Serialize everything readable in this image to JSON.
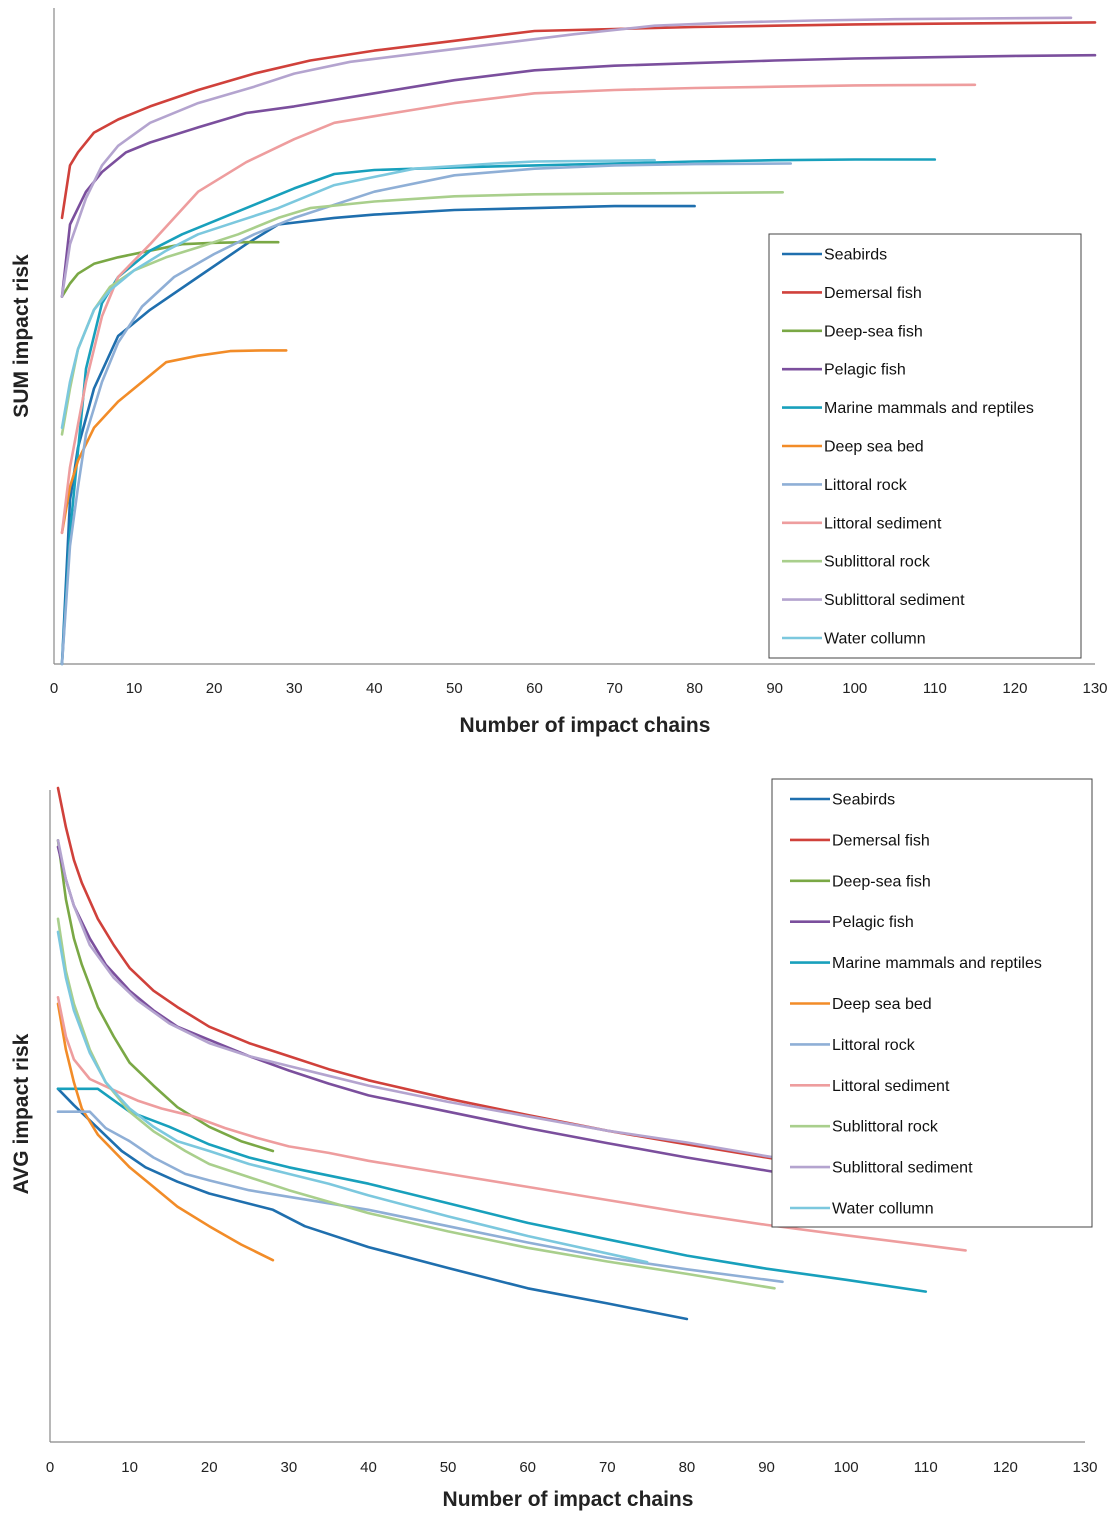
{
  "chart_data": [
    {
      "type": "line",
      "xlabel": "Number of impact chains",
      "ylabel": "SUM impact risk",
      "xlim": [
        0,
        130
      ],
      "xticks": [
        0,
        10,
        20,
        30,
        40,
        50,
        60,
        70,
        80,
        90,
        100,
        110,
        120,
        130
      ],
      "y_scale": "relative (no tick labels shown), 0 = axis bottom, 100 = top",
      "ylim": [
        0,
        100
      ],
      "legend_position": "bottom-right",
      "series": [
        {
          "name": "Seabirds",
          "color": "#1f6fae",
          "x": [
            1,
            2,
            3,
            5,
            8,
            12,
            18,
            24,
            28,
            35,
            40,
            50,
            60,
            70,
            80
          ],
          "y": [
            0,
            25,
            33,
            42,
            50,
            54,
            59,
            64,
            67,
            68,
            68.5,
            69.2,
            69.5,
            69.8,
            69.8
          ]
        },
        {
          "name": "Demersal fish",
          "color": "#d0413b",
          "x": [
            1,
            2,
            3,
            5,
            8,
            12,
            18,
            25,
            32,
            40,
            50,
            60,
            70,
            80,
            90,
            100,
            110,
            120,
            130
          ],
          "y": [
            68,
            76,
            78,
            81,
            83,
            85,
            87.5,
            90,
            92,
            93.5,
            95,
            96.5,
            96.8,
            97.1,
            97.3,
            97.5,
            97.6,
            97.7,
            97.8
          ]
        },
        {
          "name": "Deep-sea fish",
          "color": "#7aa845",
          "x": [
            1,
            2,
            3,
            5,
            8,
            12,
            16,
            20,
            24,
            28
          ],
          "y": [
            56,
            58,
            59.5,
            61,
            62,
            63,
            64,
            64.2,
            64.3,
            64.3
          ]
        },
        {
          "name": "Pelagic fish",
          "color": "#7b4f9d",
          "x": [
            1,
            2,
            4,
            6,
            9,
            12,
            18,
            24,
            30,
            40,
            50,
            60,
            70,
            80,
            90,
            100,
            110,
            120,
            130
          ],
          "y": [
            56,
            67,
            72,
            75,
            78,
            79.5,
            81.8,
            84,
            85,
            87,
            89,
            90.5,
            91.2,
            91.6,
            92,
            92.3,
            92.5,
            92.7,
            92.8
          ]
        },
        {
          "name": "Marine mammals and reptiles",
          "color": "#18a0bc",
          "x": [
            1,
            2,
            4,
            6,
            8,
            12,
            16,
            20,
            25,
            30,
            35,
            40,
            50,
            60,
            70,
            80,
            90,
            100,
            110
          ],
          "y": [
            0,
            20,
            45,
            55,
            59,
            63,
            65.5,
            67.5,
            70,
            72.5,
            74.7,
            75.3,
            75.7,
            76,
            76.3,
            76.6,
            76.8,
            76.9,
            76.9
          ]
        },
        {
          "name": "Deep sea bed",
          "color": "#f28c28",
          "x": [
            1,
            2,
            3,
            5,
            8,
            12,
            14,
            18,
            22,
            26,
            29
          ],
          "y": [
            20,
            27,
            31,
            36,
            40,
            44,
            46,
            47,
            47.7,
            47.8,
            47.8
          ]
        },
        {
          "name": "Littoral rock",
          "color": "#8fafd6",
          "x": [
            1,
            2,
            3,
            4,
            6,
            8,
            11,
            15,
            20,
            25,
            30,
            40,
            50,
            60,
            70,
            80,
            92
          ],
          "y": [
            0,
            18,
            27,
            35,
            43,
            49,
            54.5,
            59,
            62.5,
            65.5,
            68,
            72,
            74.5,
            75.5,
            76,
            76.2,
            76.3
          ]
        },
        {
          "name": "Littoral sediment",
          "color": "#ee9d9e",
          "x": [
            1,
            2,
            4,
            6,
            8,
            12,
            18,
            24,
            30,
            35,
            40,
            50,
            60,
            70,
            80,
            90,
            100,
            115
          ],
          "y": [
            20,
            30,
            43,
            53,
            59,
            64,
            72,
            76.5,
            80,
            82.5,
            83.5,
            85.5,
            87,
            87.5,
            87.8,
            88,
            88.2,
            88.3
          ]
        },
        {
          "name": "Sublittoral rock",
          "color": "#a9cf8c",
          "x": [
            1,
            2,
            3,
            5,
            7,
            10,
            14,
            18,
            23,
            28,
            32,
            40,
            50,
            60,
            70,
            80,
            91
          ],
          "y": [
            35,
            42,
            48,
            54,
            57.5,
            60,
            62,
            63.5,
            65.5,
            68,
            69.5,
            70.5,
            71.3,
            71.6,
            71.7,
            71.8,
            71.9
          ]
        },
        {
          "name": "Sublittoral sediment",
          "color": "#b4a4cf",
          "x": [
            1,
            2,
            4,
            6,
            8,
            12,
            18,
            25,
            30,
            37,
            45,
            55,
            65,
            75,
            85,
            95,
            105,
            115,
            127
          ],
          "y": [
            56,
            64,
            71,
            76,
            79,
            82.5,
            85.5,
            88,
            90,
            91.8,
            93,
            94.5,
            96,
            97.3,
            97.8,
            98.1,
            98.3,
            98.4,
            98.5
          ]
        },
        {
          "name": "Water collumn",
          "color": "#7cc8de",
          "x": [
            1,
            2,
            3,
            5,
            7,
            10,
            14,
            18,
            23,
            28,
            35,
            45,
            55,
            60,
            75
          ],
          "y": [
            36,
            43,
            48,
            54,
            57,
            60,
            63,
            65.5,
            67.5,
            69.5,
            73,
            75.5,
            76.3,
            76.6,
            76.8
          ]
        }
      ]
    },
    {
      "type": "line",
      "xlabel": "Number of impact chains",
      "ylabel": "AVG impact risk",
      "xlim": [
        0,
        130
      ],
      "xticks": [
        0,
        10,
        20,
        30,
        40,
        50,
        60,
        70,
        80,
        90,
        100,
        110,
        120,
        130
      ],
      "y_scale": "relative (no tick labels shown), 0 = axis bottom, 100 = top",
      "ylim": [
        0,
        100
      ],
      "legend_position": "top-right",
      "series": [
        {
          "name": "Seabirds",
          "color": "#1f6fae",
          "x": [
            1,
            3,
            6,
            9,
            12,
            16,
            20,
            28,
            32,
            40,
            50,
            60,
            70,
            80
          ],
          "y": [
            54,
            51.5,
            48,
            44.5,
            42,
            39.8,
            38,
            35.5,
            33,
            29.8,
            26.6,
            23.5,
            21.2,
            18.8
          ]
        },
        {
          "name": "Demersal fish",
          "color": "#d0413b",
          "x": [
            1,
            2,
            3,
            4,
            6,
            8,
            10,
            13,
            16,
            20,
            25,
            30,
            35,
            40,
            50,
            60,
            70,
            80,
            90,
            100,
            110,
            120,
            130
          ],
          "y": [
            100,
            94,
            89,
            85.5,
            80,
            76,
            72.5,
            69,
            66.5,
            63.5,
            61,
            59,
            57,
            55.3,
            52.5,
            50,
            47.6,
            45.5,
            43.5,
            41.5,
            39.5,
            37.6,
            35.7
          ]
        },
        {
          "name": "Deep-sea fish",
          "color": "#7aa845",
          "x": [
            1,
            2,
            3,
            4,
            6,
            8,
            10,
            13,
            16,
            20,
            24,
            28
          ],
          "y": [
            92,
            83,
            77,
            73,
            66.5,
            62,
            58,
            54.5,
            51.2,
            48.2,
            46,
            44.5
          ]
        },
        {
          "name": "Pelagic fish",
          "color": "#7b4f9d",
          "x": [
            1,
            2,
            3,
            5,
            7,
            10,
            13,
            16,
            20,
            25,
            30,
            35,
            40,
            50,
            60,
            70,
            80,
            90,
            100,
            110,
            120,
            130
          ],
          "y": [
            91,
            86,
            82,
            77,
            73,
            69,
            66,
            63.5,
            61.5,
            59,
            56.8,
            54.8,
            53,
            50.5,
            48,
            45.7,
            43.5,
            41.5,
            39.5,
            37.7,
            35.8,
            33.8
          ]
        },
        {
          "name": "Marine mammals and reptiles",
          "color": "#18a0bc",
          "x": [
            1,
            6,
            10,
            15,
            20,
            25,
            30,
            40,
            50,
            60,
            70,
            80,
            90,
            100,
            110
          ],
          "y": [
            54,
            54,
            50.5,
            48.2,
            45.5,
            43.5,
            42,
            39.5,
            36.5,
            33.5,
            31,
            28.5,
            26.5,
            24.8,
            23
          ]
        },
        {
          "name": "Deep sea bed",
          "color": "#f28c28",
          "x": [
            1,
            2,
            3,
            4,
            6,
            8,
            10,
            13,
            16,
            20,
            24,
            28
          ],
          "y": [
            67,
            60,
            55,
            51,
            47,
            44.5,
            42,
            39,
            36,
            33,
            30.2,
            27.8
          ]
        },
        {
          "name": "Littoral rock",
          "color": "#8fafd6",
          "x": [
            1,
            5,
            7,
            10,
            13,
            17,
            20,
            25,
            30,
            40,
            50,
            60,
            70,
            80,
            92
          ],
          "y": [
            50.5,
            50.5,
            48,
            46,
            43.5,
            41,
            40,
            38.5,
            37.5,
            35.5,
            33,
            30.5,
            28.2,
            26.4,
            24.5
          ]
        },
        {
          "name": "Littoral sediment",
          "color": "#ee9d9e",
          "x": [
            1,
            2,
            3,
            5,
            8,
            11,
            14,
            18,
            22,
            26,
            30,
            35,
            40,
            50,
            60,
            70,
            80,
            90,
            100,
            115
          ],
          "y": [
            68,
            62,
            58.5,
            55.5,
            53.8,
            52.2,
            51,
            49.8,
            48,
            46.5,
            45.2,
            44.2,
            43,
            41,
            39,
            37,
            35,
            33.2,
            31.6,
            29.3
          ]
        },
        {
          "name": "Sublittoral rock",
          "color": "#a9cf8c",
          "x": [
            1,
            2,
            3,
            5,
            7,
            10,
            13,
            17,
            20,
            25,
            30,
            40,
            50,
            60,
            70,
            80,
            91
          ],
          "y": [
            80,
            72,
            67,
            60,
            55,
            50.5,
            47.5,
            44.5,
            42.5,
            40.5,
            38.5,
            35,
            32.2,
            29.7,
            27.6,
            25.7,
            23.5
          ]
        },
        {
          "name": "Sublittoral sediment",
          "color": "#b4a4cf",
          "x": [
            1,
            2,
            3,
            5,
            8,
            11,
            15,
            20,
            25,
            30,
            35,
            40,
            50,
            60,
            70,
            80,
            90,
            100,
            110,
            120,
            127
          ],
          "y": [
            92,
            86,
            82,
            76,
            71,
            67.5,
            64,
            61,
            59,
            57.5,
            56,
            54.5,
            52,
            49.8,
            47.6,
            45.8,
            43.7,
            41.8,
            39.8,
            37.9,
            36.5
          ]
        },
        {
          "name": "Water collumn",
          "color": "#7cc8de",
          "x": [
            1,
            2,
            3,
            5,
            7,
            10,
            13,
            16,
            20,
            25,
            30,
            35,
            40,
            50,
            60,
            75
          ],
          "y": [
            78,
            71,
            66,
            59.5,
            55,
            51,
            48.2,
            46,
            44.5,
            42.5,
            41,
            39.5,
            37.7,
            34.5,
            31.5,
            27.5
          ]
        }
      ]
    }
  ]
}
